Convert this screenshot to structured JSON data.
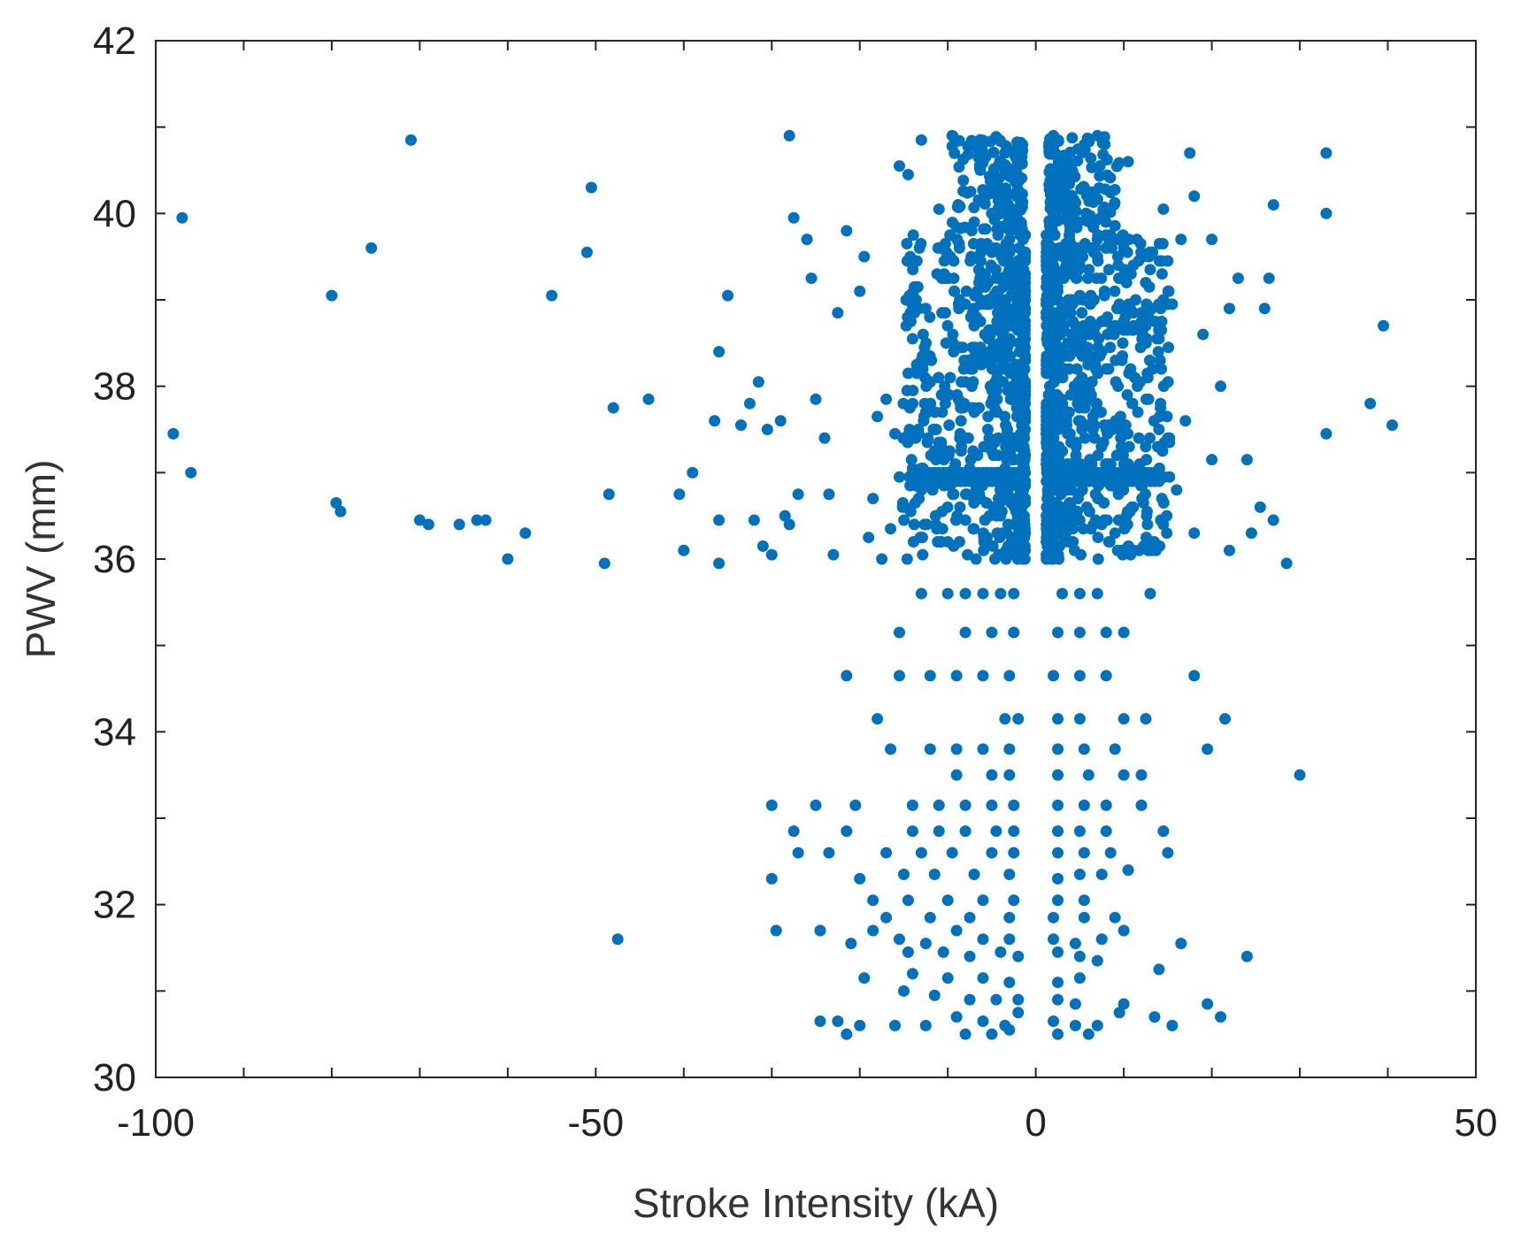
{
  "chart_data": {
    "type": "scatter",
    "xlabel": "Stroke Intensity (kA)",
    "ylabel": "PWV (mm)",
    "xlim": [
      -100,
      50
    ],
    "ylim": [
      30,
      42
    ],
    "xticks": [
      -100,
      -50,
      0,
      50
    ],
    "yticks": [
      30,
      32,
      34,
      36,
      38,
      40,
      42
    ],
    "grid": false,
    "marker_color": "#0072BD",
    "series": [
      {
        "points": [
          [
            -97,
            39.95
          ],
          [
            -98,
            37.45
          ],
          [
            -80,
            39.05
          ],
          [
            -79.5,
            36.65
          ],
          [
            -79,
            36.55
          ],
          [
            -75.5,
            39.6
          ],
          [
            -71,
            40.85
          ],
          [
            -70,
            36.45
          ],
          [
            -69,
            36.4
          ],
          [
            -65.5,
            36.4
          ],
          [
            -63.5,
            36.45
          ],
          [
            -62.5,
            36.45
          ],
          [
            -60,
            36.0
          ],
          [
            -58,
            36.3
          ],
          [
            -55,
            39.05
          ],
          [
            -50.5,
            40.3
          ],
          [
            -51,
            39.55
          ],
          [
            -49,
            35.95
          ],
          [
            -48.5,
            36.75
          ],
          [
            -48,
            37.75
          ],
          [
            -47.5,
            31.6
          ],
          [
            -44,
            37.85
          ],
          [
            -40.5,
            36.75
          ],
          [
            -40,
            36.1
          ],
          [
            -39,
            37.0
          ],
          [
            -36.5,
            37.6
          ],
          [
            -36,
            36.45
          ],
          [
            -36,
            35.95
          ],
          [
            -36,
            38.4
          ],
          [
            -35,
            39.05
          ],
          [
            -33.5,
            37.55
          ],
          [
            -32.5,
            37.8
          ],
          [
            -32,
            36.45
          ],
          [
            -31.5,
            38.05
          ],
          [
            -31,
            36.15
          ],
          [
            -30.5,
            37.5
          ],
          [
            -30,
            36.05
          ],
          [
            -29,
            37.6
          ],
          [
            -28.5,
            36.5
          ],
          [
            -28,
            36.4
          ],
          [
            -28,
            40.9
          ],
          [
            -27.5,
            39.95
          ],
          [
            -27,
            36.75
          ],
          [
            -26,
            39.7
          ],
          [
            -25.5,
            39.25
          ],
          [
            -25,
            37.85
          ],
          [
            -24,
            37.4
          ],
          [
            -23.5,
            36.75
          ],
          [
            -23,
            36.05
          ],
          [
            -22.5,
            38.85
          ],
          [
            -21.5,
            39.8
          ],
          [
            -20,
            39.1
          ],
          [
            -19.5,
            39.5
          ],
          [
            -19,
            36.25
          ],
          [
            -18.5,
            36.7
          ],
          [
            -18,
            37.65
          ],
          [
            -17.5,
            36.0
          ],
          [
            -17,
            37.85
          ],
          [
            -16.5,
            36.35
          ],
          [
            -16,
            37.45
          ],
          [
            -15.5,
            36.95
          ],
          [
            -15.5,
            40.55
          ],
          [
            -14.5,
            40.45
          ],
          [
            -14,
            37.05
          ],
          [
            -13,
            40.85
          ],
          [
            -12.5,
            38.9
          ],
          [
            -11,
            40.05
          ],
          [
            -10,
            36.2
          ],
          [
            -9.5,
            40.9
          ],
          [
            -8.5,
            37.6
          ],
          [
            -7,
            39.9
          ],
          [
            -6,
            38.4
          ],
          [
            -5.5,
            40.25
          ],
          [
            -4.5,
            36.95
          ],
          [
            -4,
            39.0
          ],
          [
            -3.5,
            40.7
          ],
          [
            -2.5,
            37.4
          ],
          [
            -2,
            38.7
          ],
          [
            2,
            40.9
          ],
          [
            2.5,
            37.1
          ],
          [
            3,
            38.8
          ],
          [
            3.5,
            40.5
          ],
          [
            4,
            36.6
          ],
          [
            5,
            39.4
          ],
          [
            5.5,
            40.3
          ],
          [
            6.5,
            37.5
          ],
          [
            7,
            40.9
          ],
          [
            8,
            38.2
          ],
          [
            9,
            36.3
          ],
          [
            10,
            39.6
          ],
          [
            10.5,
            40.6
          ],
          [
            11,
            37.8
          ],
          [
            12,
            36.9
          ],
          [
            12.5,
            38.7
          ],
          [
            13,
            39.35
          ],
          [
            14,
            36.15
          ],
          [
            14.5,
            40.05
          ],
          [
            15,
            37.4
          ],
          [
            15.5,
            38.95
          ],
          [
            16,
            36.8
          ],
          [
            16.5,
            39.7
          ],
          [
            17,
            37.6
          ],
          [
            17.5,
            40.7
          ],
          [
            18,
            36.3
          ],
          [
            18,
            40.2
          ],
          [
            19,
            38.6
          ],
          [
            20,
            37.15
          ],
          [
            20,
            39.7
          ],
          [
            21,
            38.0
          ],
          [
            22,
            36.1
          ],
          [
            22,
            38.9
          ],
          [
            23,
            39.25
          ],
          [
            24,
            37.15
          ],
          [
            24.5,
            36.3
          ],
          [
            25.5,
            36.6
          ],
          [
            26,
            38.9
          ],
          [
            26.5,
            39.25
          ],
          [
            27,
            40.1
          ],
          [
            27,
            36.45
          ],
          [
            28.5,
            35.95
          ],
          [
            33,
            40.7
          ],
          [
            33,
            40.0
          ],
          [
            33,
            37.45
          ],
          [
            38,
            37.8
          ],
          [
            39.5,
            38.7
          ],
          [
            40.5,
            37.55
          ],
          [
            -13,
            35.6
          ],
          [
            -10,
            35.6
          ],
          [
            -8,
            35.6
          ],
          [
            -6,
            35.6
          ],
          [
            -4,
            35.6
          ],
          [
            -2.5,
            35.6
          ],
          [
            3,
            35.6
          ],
          [
            5,
            35.6
          ],
          [
            7,
            35.6
          ],
          [
            13,
            35.6
          ],
          [
            -15.5,
            35.15
          ],
          [
            -8,
            35.15
          ],
          [
            -5,
            35.15
          ],
          [
            -2.5,
            35.15
          ],
          [
            2.5,
            35.15
          ],
          [
            5,
            35.15
          ],
          [
            8,
            35.15
          ],
          [
            10,
            35.15
          ],
          [
            -21.5,
            34.65
          ],
          [
            -15.5,
            34.65
          ],
          [
            -12,
            34.65
          ],
          [
            -9,
            34.65
          ],
          [
            -6,
            34.65
          ],
          [
            -3,
            34.65
          ],
          [
            2,
            34.65
          ],
          [
            5,
            34.65
          ],
          [
            8,
            34.65
          ],
          [
            18,
            34.65
          ],
          [
            -18,
            34.15
          ],
          [
            -3.5,
            34.15
          ],
          [
            -2,
            34.15
          ],
          [
            2.5,
            34.15
          ],
          [
            5,
            34.15
          ],
          [
            10,
            34.15
          ],
          [
            12.5,
            34.15
          ],
          [
            21.5,
            34.15
          ],
          [
            -16.5,
            33.8
          ],
          [
            -12,
            33.8
          ],
          [
            -9,
            33.8
          ],
          [
            -6,
            33.8
          ],
          [
            -3,
            33.8
          ],
          [
            2.5,
            33.8
          ],
          [
            5.5,
            33.8
          ],
          [
            9,
            33.8
          ],
          [
            19.5,
            33.8
          ],
          [
            -9,
            33.5
          ],
          [
            -5,
            33.5
          ],
          [
            -3,
            33.5
          ],
          [
            2.5,
            33.5
          ],
          [
            6,
            33.5
          ],
          [
            10,
            33.5
          ],
          [
            12,
            33.5
          ],
          [
            30,
            33.5
          ],
          [
            -30,
            33.15
          ],
          [
            -25,
            33.15
          ],
          [
            -20.5,
            33.15
          ],
          [
            -14,
            33.15
          ],
          [
            -11,
            33.15
          ],
          [
            -8,
            33.15
          ],
          [
            -5,
            33.15
          ],
          [
            -2.5,
            33.15
          ],
          [
            2.5,
            33.15
          ],
          [
            5.5,
            33.15
          ],
          [
            8,
            33.15
          ],
          [
            12,
            33.15
          ],
          [
            -27.5,
            32.85
          ],
          [
            -21.5,
            32.85
          ],
          [
            -14,
            32.85
          ],
          [
            -11,
            32.85
          ],
          [
            -8,
            32.85
          ],
          [
            -4.5,
            32.85
          ],
          [
            -2.5,
            32.85
          ],
          [
            2.5,
            32.85
          ],
          [
            5,
            32.85
          ],
          [
            8,
            32.85
          ],
          [
            14.5,
            32.85
          ],
          [
            -27,
            32.6
          ],
          [
            -23.5,
            32.6
          ],
          [
            -17,
            32.6
          ],
          [
            -13,
            32.6
          ],
          [
            -9.5,
            32.6
          ],
          [
            -5,
            32.6
          ],
          [
            -2.5,
            32.6
          ],
          [
            2.5,
            32.6
          ],
          [
            5.5,
            32.6
          ],
          [
            8.5,
            32.6
          ],
          [
            15,
            32.6
          ],
          [
            -30,
            32.3
          ],
          [
            -20,
            32.3
          ],
          [
            -15,
            32.35
          ],
          [
            -11.5,
            32.35
          ],
          [
            -7,
            32.35
          ],
          [
            -3,
            32.35
          ],
          [
            2.5,
            32.3
          ],
          [
            5,
            32.35
          ],
          [
            7.5,
            32.35
          ],
          [
            10.5,
            32.4
          ],
          [
            -18.5,
            32.05
          ],
          [
            -14.5,
            32.05
          ],
          [
            -10,
            32.05
          ],
          [
            -6,
            32.05
          ],
          [
            -2.5,
            32.05
          ],
          [
            2.5,
            32.05
          ],
          [
            5.5,
            32.05
          ],
          [
            -17,
            31.85
          ],
          [
            -12,
            31.85
          ],
          [
            -7.5,
            31.85
          ],
          [
            -3,
            31.85
          ],
          [
            2,
            31.85
          ],
          [
            5.5,
            31.85
          ],
          [
            9,
            31.85
          ],
          [
            -29.5,
            31.7
          ],
          [
            -24.5,
            31.7
          ],
          [
            -18.5,
            31.7
          ],
          [
            -15.5,
            31.6
          ],
          [
            -12.5,
            31.55
          ],
          [
            -9,
            31.7
          ],
          [
            -6,
            31.6
          ],
          [
            -3,
            31.6
          ],
          [
            2,
            31.6
          ],
          [
            4.5,
            31.55
          ],
          [
            7.5,
            31.6
          ],
          [
            10,
            31.7
          ],
          [
            -21,
            31.55
          ],
          [
            -14.5,
            31.45
          ],
          [
            -10.5,
            31.45
          ],
          [
            -7.5,
            31.4
          ],
          [
            -4,
            31.45
          ],
          [
            -2,
            31.4
          ],
          [
            2.5,
            31.45
          ],
          [
            5,
            31.4
          ],
          [
            7,
            31.35
          ],
          [
            16.5,
            31.55
          ],
          [
            24,
            31.4
          ],
          [
            -19.5,
            31.15
          ],
          [
            -14,
            31.2
          ],
          [
            -10,
            31.15
          ],
          [
            -6,
            31.15
          ],
          [
            -3,
            31.1
          ],
          [
            2.5,
            31.1
          ],
          [
            5,
            31.15
          ],
          [
            14,
            31.25
          ],
          [
            -15,
            31.0
          ],
          [
            -11.5,
            30.95
          ],
          [
            -7.5,
            30.9
          ],
          [
            -4.5,
            30.9
          ],
          [
            -2,
            30.9
          ],
          [
            2.5,
            30.9
          ],
          [
            4.5,
            30.85
          ],
          [
            10,
            30.85
          ],
          [
            19.5,
            30.85
          ],
          [
            -24.5,
            30.65
          ],
          [
            -22.5,
            30.65
          ],
          [
            -20,
            30.6
          ],
          [
            -16,
            30.6
          ],
          [
            -12.5,
            30.6
          ],
          [
            -9,
            30.7
          ],
          [
            -6,
            30.65
          ],
          [
            -3.5,
            30.6
          ],
          [
            -2,
            30.75
          ],
          [
            2,
            30.65
          ],
          [
            4.5,
            30.6
          ],
          [
            7,
            30.6
          ],
          [
            9.5,
            30.75
          ],
          [
            13.5,
            30.7
          ],
          [
            15.5,
            30.6
          ],
          [
            21,
            30.7
          ],
          [
            -21.5,
            30.5
          ],
          [
            -8,
            30.5
          ],
          [
            -5,
            30.5
          ],
          [
            -3,
            30.55
          ],
          [
            2.5,
            30.5
          ],
          [
            6,
            30.5
          ],
          [
            -96,
            37.0
          ]
        ]
      }
    ]
  }
}
